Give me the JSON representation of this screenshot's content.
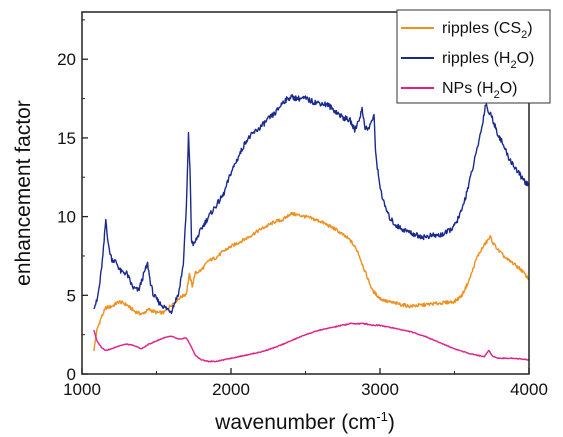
{
  "chart_data": {
    "type": "line",
    "xlabel": "wavenumber",
    "xlabel_unit_base": "(cm",
    "xlabel_unit_exp": "-1",
    "xlabel_unit_close": ")",
    "ylabel": "enhancement factor",
    "xlim": [
      1000,
      4000
    ],
    "ylim": [
      0,
      23
    ],
    "x_ticks": [
      1000,
      2000,
      3000,
      4000
    ],
    "y_ticks": [
      0,
      5,
      10,
      15,
      20
    ],
    "grid": false,
    "legend_position": "top-right",
    "series": [
      {
        "name": "ripples (CS2)",
        "legend_main": "ripples (CS",
        "legend_sub": "2",
        "legend_close": ")",
        "color": "#ef8f1f",
        "x": [
          1080,
          1100,
          1130,
          1160,
          1200,
          1250,
          1300,
          1350,
          1400,
          1450,
          1500,
          1550,
          1600,
          1650,
          1700,
          1720,
          1740,
          1760,
          1800,
          1850,
          1900,
          1950,
          2000,
          2100,
          2200,
          2300,
          2350,
          2400,
          2450,
          2500,
          2600,
          2700,
          2800,
          2850,
          2900,
          2950,
          3000,
          3050,
          3100,
          3200,
          3300,
          3400,
          3500,
          3550,
          3600,
          3650,
          3700,
          3740,
          3760,
          3800,
          3850,
          3900,
          3950,
          4000
        ],
        "y": [
          1.5,
          2.8,
          3.6,
          4.2,
          4.3,
          4.6,
          4.4,
          4.0,
          3.8,
          4.1,
          3.9,
          3.9,
          4.4,
          4.8,
          5.1,
          6.3,
          5.6,
          6.4,
          6.6,
          7.2,
          7.4,
          7.8,
          8.1,
          8.6,
          9.2,
          9.7,
          9.8,
          10.2,
          10.1,
          10.0,
          9.7,
          9.2,
          8.5,
          7.8,
          6.5,
          5.3,
          4.8,
          4.6,
          4.5,
          4.3,
          4.4,
          4.5,
          4.6,
          5.0,
          6.0,
          7.4,
          8.2,
          8.7,
          8.3,
          7.8,
          7.3,
          7.0,
          6.6,
          6.0
        ]
      },
      {
        "name": "ripples (H2O)",
        "legend_main": "ripples (H",
        "legend_sub": "2",
        "legend_close": "O)",
        "color": "#1a2a8c",
        "x": [
          1080,
          1100,
          1120,
          1140,
          1160,
          1180,
          1200,
          1230,
          1260,
          1300,
          1340,
          1380,
          1420,
          1440,
          1460,
          1480,
          1520,
          1560,
          1600,
          1650,
          1680,
          1700,
          1715,
          1725,
          1735,
          1750,
          1770,
          1800,
          1850,
          1900,
          1950,
          2000,
          2050,
          2100,
          2150,
          2200,
          2250,
          2300,
          2350,
          2400,
          2450,
          2500,
          2550,
          2600,
          2650,
          2700,
          2750,
          2800,
          2830,
          2860,
          2880,
          2900,
          2920,
          2940,
          2960,
          2970,
          2990,
          3020,
          3060,
          3100,
          3150,
          3200,
          3250,
          3300,
          3350,
          3400,
          3450,
          3500,
          3550,
          3600,
          3640,
          3680,
          3710,
          3730,
          3750,
          3780,
          3820,
          3860,
          3900,
          3950,
          4000
        ],
        "y": [
          4.3,
          4.6,
          5.8,
          7.5,
          9.8,
          8.0,
          7.3,
          7.1,
          6.5,
          6.4,
          5.5,
          5.3,
          6.5,
          7.0,
          5.8,
          5.0,
          4.5,
          4.2,
          4.0,
          5.2,
          7.0,
          10.5,
          15.2,
          13.0,
          8.5,
          8.2,
          8.6,
          9.2,
          10.0,
          10.7,
          11.4,
          12.8,
          13.8,
          14.8,
          15.3,
          15.7,
          16.2,
          16.6,
          17.3,
          17.6,
          17.5,
          17.5,
          17.3,
          17.2,
          17.1,
          16.7,
          16.3,
          16.1,
          15.5,
          16.2,
          16.8,
          15.7,
          15.5,
          16.0,
          16.4,
          14.2,
          12.5,
          11.0,
          10.0,
          9.5,
          9.2,
          9.0,
          8.8,
          8.7,
          8.8,
          8.8,
          9.0,
          9.4,
          10.4,
          12.2,
          13.8,
          15.5,
          17.2,
          16.6,
          16.4,
          15.5,
          14.7,
          13.8,
          13.2,
          12.5,
          11.9
        ]
      },
      {
        "name": "NPs (H2O)",
        "legend_main": "NPs (H",
        "legend_sub": "2",
        "legend_close": "O)",
        "color": "#e0208a",
        "x": [
          1080,
          1100,
          1130,
          1160,
          1200,
          1250,
          1300,
          1350,
          1400,
          1450,
          1500,
          1550,
          1600,
          1650,
          1700,
          1730,
          1760,
          1800,
          1850,
          1900,
          1950,
          2000,
          2100,
          2200,
          2300,
          2400,
          2500,
          2600,
          2700,
          2800,
          2850,
          2900,
          2950,
          3000,
          3100,
          3200,
          3300,
          3400,
          3500,
          3600,
          3700,
          3730,
          3760,
          3800,
          3900,
          4000
        ],
        "y": [
          2.8,
          2.1,
          1.7,
          1.5,
          1.6,
          1.8,
          1.9,
          1.8,
          1.6,
          1.9,
          2.1,
          2.3,
          2.4,
          2.2,
          2.3,
          1.8,
          1.2,
          0.9,
          0.8,
          0.8,
          0.9,
          1.0,
          1.2,
          1.4,
          1.7,
          2.1,
          2.5,
          2.8,
          3.0,
          3.2,
          3.2,
          3.2,
          3.1,
          3.1,
          2.9,
          2.7,
          2.4,
          2.0,
          1.6,
          1.3,
          1.1,
          1.5,
          1.1,
          1.0,
          1.0,
          0.9
        ]
      }
    ]
  }
}
